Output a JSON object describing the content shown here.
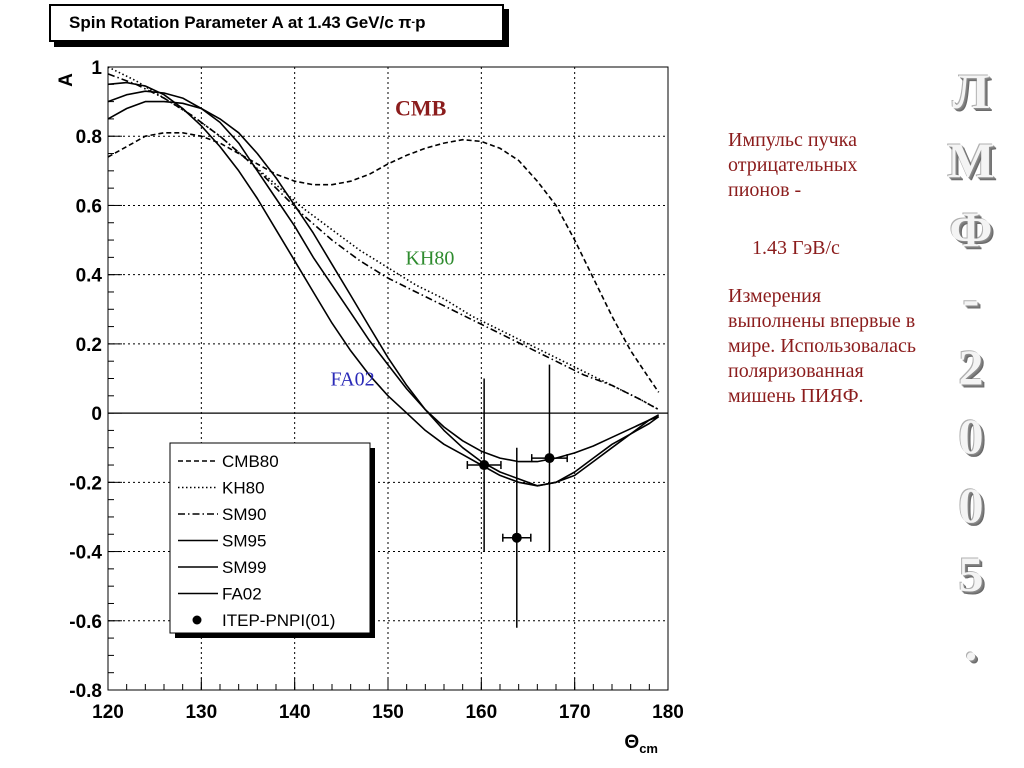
{
  "title": {
    "main": "Spin Rotation Parameter A at 1.43 GeV/c π",
    "sup": "-",
    "tail": "p"
  },
  "side_text": {
    "para1": "Импульс пучка отрицательных пионов -",
    "para2": "1.43 ГэВ/с",
    "para3": "Измерения выполнены впервые в мире. Использовалась поляризованная мишень ПИЯФ."
  },
  "vertical_caption": [
    "Л",
    "М",
    "Ф",
    "-",
    "2",
    "0",
    "0",
    "5",
    "."
  ],
  "colors": {
    "cmb_label": "#8b1c1c",
    "kh80_label": "#2e8b2e",
    "fa02_label": "#2a2ab8",
    "side_text": "#8b1c1c",
    "curves": "#000000"
  },
  "chart_data": {
    "type": "line",
    "title": "Spin Rotation Parameter A at 1.43 GeV/c π-p",
    "xlabel": "Θcm",
    "ylabel": "A",
    "xlim": [
      120,
      180
    ],
    "ylim": [
      -0.8,
      1
    ],
    "x_ticks": [
      "120",
      "130",
      "140",
      "150",
      "160",
      "170",
      "180"
    ],
    "y_ticks": [
      "1",
      "0.8",
      "0.6",
      "0.4",
      "0.2",
      "0",
      "-0.2",
      "-0.4",
      "-0.6",
      "-0.8"
    ],
    "grid": true,
    "legend_position": "bottom-left",
    "annotations": [
      {
        "text": "CMB",
        "x": 153.5,
        "y": 0.86,
        "color_key": "cmb_label"
      },
      {
        "text": "KH80",
        "x": 154.5,
        "y": 0.43,
        "color_key": "kh80_label"
      },
      {
        "text": "FA02",
        "x": 146.2,
        "y": 0.08,
        "color_key": "fa02_label"
      }
    ],
    "series": [
      {
        "name": "CMB80",
        "style": "dashed",
        "points": [
          [
            120,
            0.74
          ],
          [
            122,
            0.77
          ],
          [
            124,
            0.8
          ],
          [
            126,
            0.81
          ],
          [
            128,
            0.81
          ],
          [
            130,
            0.8
          ],
          [
            132,
            0.78
          ],
          [
            134,
            0.75
          ],
          [
            136,
            0.72
          ],
          [
            138,
            0.69
          ],
          [
            140,
            0.67
          ],
          [
            142,
            0.66
          ],
          [
            144,
            0.66
          ],
          [
            146,
            0.67
          ],
          [
            148,
            0.69
          ],
          [
            150,
            0.72
          ],
          [
            152,
            0.745
          ],
          [
            154,
            0.765
          ],
          [
            156,
            0.78
          ],
          [
            158,
            0.79
          ],
          [
            160,
            0.785
          ],
          [
            162,
            0.765
          ],
          [
            164,
            0.73
          ],
          [
            166,
            0.67
          ],
          [
            168,
            0.6
          ],
          [
            170,
            0.5
          ],
          [
            172,
            0.39
          ],
          [
            174,
            0.28
          ],
          [
            176,
            0.18
          ],
          [
            178,
            0.1
          ],
          [
            179,
            0.06
          ]
        ]
      },
      {
        "name": "KH80",
        "style": "dotted",
        "points": [
          [
            120,
            1.0
          ],
          [
            123,
            0.96
          ],
          [
            126,
            0.91
          ],
          [
            129,
            0.86
          ],
          [
            132,
            0.8
          ],
          [
            135,
            0.73
          ],
          [
            138,
            0.66
          ],
          [
            141,
            0.59
          ],
          [
            144,
            0.53
          ],
          [
            147,
            0.47
          ],
          [
            150,
            0.42
          ],
          [
            153,
            0.37
          ],
          [
            156,
            0.33
          ],
          [
            159,
            0.28
          ],
          [
            162,
            0.24
          ],
          [
            165,
            0.2
          ],
          [
            168,
            0.16
          ],
          [
            171,
            0.12
          ],
          [
            174,
            0.08
          ],
          [
            177,
            0.04
          ],
          [
            179,
            0.01
          ]
        ]
      },
      {
        "name": "SM90",
        "style": "dashdot",
        "points": [
          [
            120,
            0.98
          ],
          [
            123,
            0.95
          ],
          [
            126,
            0.91
          ],
          [
            129,
            0.86
          ],
          [
            132,
            0.8
          ],
          [
            135,
            0.73
          ],
          [
            138,
            0.65
          ],
          [
            141,
            0.57
          ],
          [
            144,
            0.5
          ],
          [
            147,
            0.44
          ],
          [
            150,
            0.39
          ],
          [
            153,
            0.35
          ],
          [
            156,
            0.31
          ],
          [
            159,
            0.27
          ],
          [
            162,
            0.23
          ],
          [
            165,
            0.19
          ],
          [
            168,
            0.15
          ],
          [
            171,
            0.11
          ],
          [
            174,
            0.08
          ],
          [
            177,
            0.04
          ],
          [
            179,
            0.01
          ]
        ]
      },
      {
        "name": "SM95",
        "style": "solid",
        "points": [
          [
            120,
            0.9
          ],
          [
            122,
            0.92
          ],
          [
            124,
            0.93
          ],
          [
            126,
            0.925
          ],
          [
            128,
            0.91
          ],
          [
            130,
            0.88
          ],
          [
            132,
            0.84
          ],
          [
            134,
            0.78
          ],
          [
            136,
            0.7
          ],
          [
            138,
            0.62
          ],
          [
            140,
            0.54
          ],
          [
            142,
            0.45
          ],
          [
            144,
            0.37
          ],
          [
            146,
            0.29
          ],
          [
            148,
            0.21
          ],
          [
            150,
            0.14
          ],
          [
            152,
            0.07
          ],
          [
            154,
            0.01
          ],
          [
            156,
            -0.04
          ],
          [
            158,
            -0.08
          ],
          [
            160,
            -0.11
          ],
          [
            162,
            -0.13
          ],
          [
            164,
            -0.14
          ],
          [
            166,
            -0.14
          ],
          [
            168,
            -0.13
          ],
          [
            170,
            -0.115
          ],
          [
            172,
            -0.095
          ],
          [
            174,
            -0.07
          ],
          [
            176,
            -0.045
          ],
          [
            178,
            -0.02
          ],
          [
            179,
            -0.01
          ]
        ]
      },
      {
        "name": "SM99",
        "style": "solid",
        "points": [
          [
            120,
            0.85
          ],
          [
            122,
            0.88
          ],
          [
            124,
            0.9
          ],
          [
            126,
            0.9
          ],
          [
            128,
            0.895
          ],
          [
            130,
            0.88
          ],
          [
            132,
            0.85
          ],
          [
            134,
            0.81
          ],
          [
            136,
            0.75
          ],
          [
            138,
            0.68
          ],
          [
            140,
            0.6
          ],
          [
            142,
            0.52
          ],
          [
            144,
            0.43
          ],
          [
            146,
            0.34
          ],
          [
            148,
            0.25
          ],
          [
            150,
            0.16
          ],
          [
            152,
            0.08
          ],
          [
            154,
            0.01
          ],
          [
            156,
            -0.05
          ],
          [
            158,
            -0.1
          ],
          [
            160,
            -0.14
          ],
          [
            162,
            -0.17
          ],
          [
            164,
            -0.19
          ],
          [
            166,
            -0.21
          ],
          [
            168,
            -0.2
          ],
          [
            170,
            -0.17
          ],
          [
            172,
            -0.13
          ],
          [
            174,
            -0.09
          ],
          [
            176,
            -0.06
          ],
          [
            178,
            -0.03
          ],
          [
            179,
            -0.01
          ]
        ]
      },
      {
        "name": "FA02",
        "style": "solid",
        "points": [
          [
            120,
            0.95
          ],
          [
            122,
            0.955
          ],
          [
            124,
            0.945
          ],
          [
            126,
            0.92
          ],
          [
            128,
            0.88
          ],
          [
            130,
            0.83
          ],
          [
            132,
            0.77
          ],
          [
            134,
            0.7
          ],
          [
            136,
            0.62
          ],
          [
            138,
            0.53
          ],
          [
            140,
            0.44
          ],
          [
            142,
            0.35
          ],
          [
            144,
            0.26
          ],
          [
            146,
            0.18
          ],
          [
            148,
            0.11
          ],
          [
            150,
            0.05
          ],
          [
            152,
            0.0
          ],
          [
            154,
            -0.05
          ],
          [
            156,
            -0.09
          ],
          [
            158,
            -0.12
          ],
          [
            160,
            -0.15
          ],
          [
            162,
            -0.18
          ],
          [
            164,
            -0.2
          ],
          [
            166,
            -0.21
          ],
          [
            168,
            -0.2
          ],
          [
            170,
            -0.18
          ],
          [
            172,
            -0.14
          ],
          [
            174,
            -0.1
          ],
          [
            176,
            -0.06
          ],
          [
            178,
            -0.02
          ],
          [
            179,
            -0.005
          ]
        ]
      },
      {
        "name": "ITEP-PNPI(01)",
        "style": "points",
        "points": [
          {
            "x": 160.3,
            "y": -0.15,
            "xerr": 1.8,
            "yerr": 0.25
          },
          {
            "x": 163.8,
            "y": -0.36,
            "xerr": 1.5,
            "yerr": 0.26
          },
          {
            "x": 167.3,
            "y": -0.13,
            "xerr": 1.9,
            "yerr": 0.27
          }
        ]
      }
    ]
  }
}
